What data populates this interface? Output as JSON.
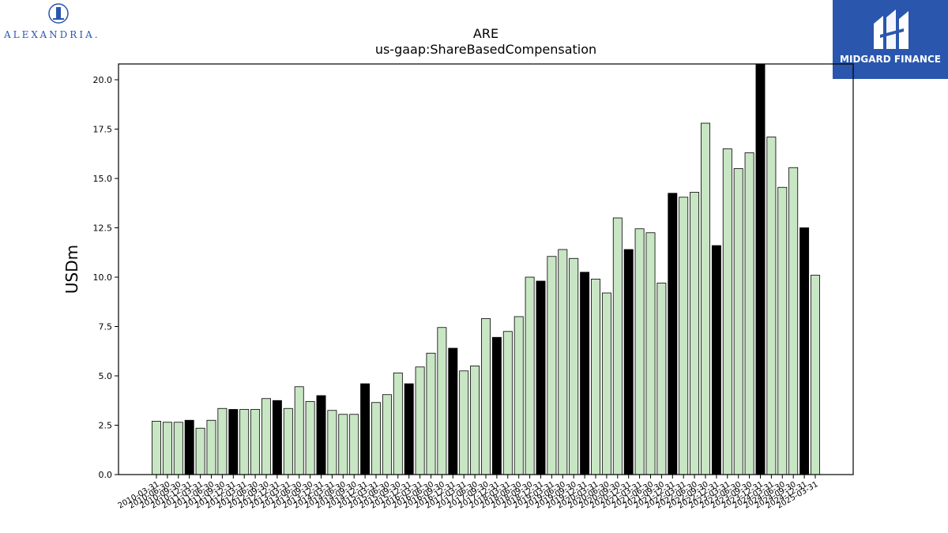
{
  "logos": {
    "left_text": "ALEXANDRIA.",
    "right_text": "MIDGARD FINANCE",
    "right_bg_color": "#2a57ad",
    "left_color": "#2a57ad"
  },
  "chart_data": {
    "type": "bar",
    "title": "ARE",
    "subtitle": "us-gaap:ShareBasedCompensation",
    "xlabel": "",
    "ylabel": "USDm",
    "ylim": [
      0,
      20.8
    ],
    "yticks": [
      "0.0",
      "2.5",
      "5.0",
      "7.5",
      "10.0",
      "12.5",
      "15.0",
      "17.5",
      "20.0"
    ],
    "grid": false,
    "colors": {
      "quarter": "#c8e6c4",
      "annual": "#000000",
      "edge": "#000000"
    },
    "categories": [
      "2010-03-31",
      "2010-06-30",
      "2010-09-30",
      "2010-12-31",
      "2011-03-31",
      "2011-06-30",
      "2011-09-30",
      "2011-12-31",
      "2012-03-31",
      "2012-06-30",
      "2012-09-30",
      "2012-12-31",
      "2013-03-31",
      "2013-06-30",
      "2013-09-30",
      "2013-12-31",
      "2014-03-31",
      "2014-06-30",
      "2014-09-30",
      "2014-12-31",
      "2015-03-31",
      "2015-06-30",
      "2015-09-30",
      "2015-12-31",
      "2016-03-31",
      "2016-06-30",
      "2016-09-30",
      "2016-12-31",
      "2017-03-31",
      "2017-06-30",
      "2017-09-30",
      "2017-12-31",
      "2018-03-31",
      "2018-06-30",
      "2018-09-30",
      "2018-12-31",
      "2019-03-31",
      "2019-06-30",
      "2019-09-30",
      "2019-12-31",
      "2020-03-31",
      "2020-06-30",
      "2020-09-30",
      "2020-12-31",
      "2021-03-31",
      "2021-06-30",
      "2021-09-30",
      "2021-12-31",
      "2022-03-31",
      "2022-06-30",
      "2022-09-30",
      "2022-12-31",
      "2023-03-31",
      "2023-06-30",
      "2023-09-30",
      "2023-12-31",
      "2024-03-31",
      "2024-06-30",
      "2024-09-30",
      "2024-12-31",
      "2025-03-31"
    ],
    "values": [
      2.7,
      2.65,
      2.65,
      2.75,
      2.35,
      2.75,
      3.35,
      3.3,
      3.3,
      3.3,
      3.85,
      3.75,
      3.35,
      4.45,
      3.7,
      4.0,
      3.25,
      3.05,
      3.05,
      4.6,
      3.65,
      4.05,
      5.15,
      4.6,
      5.45,
      6.15,
      7.45,
      6.4,
      5.25,
      5.5,
      7.9,
      6.95,
      7.25,
      8.0,
      10.0,
      9.8,
      11.05,
      11.4,
      10.95,
      10.25,
      9.9,
      9.2,
      13.0,
      11.4,
      12.45,
      12.25,
      9.7,
      14.25,
      14.05,
      14.3,
      17.8,
      11.6,
      16.5,
      15.5,
      16.3,
      20.85,
      17.1,
      14.55,
      15.55,
      12.5,
      10.1
    ],
    "annual": [
      false,
      false,
      false,
      true,
      false,
      false,
      false,
      true,
      false,
      false,
      false,
      true,
      false,
      false,
      false,
      true,
      false,
      false,
      false,
      true,
      false,
      false,
      false,
      true,
      false,
      false,
      false,
      true,
      false,
      false,
      false,
      true,
      false,
      false,
      false,
      true,
      false,
      false,
      false,
      true,
      false,
      false,
      false,
      true,
      false,
      false,
      false,
      true,
      false,
      false,
      false,
      true,
      false,
      false,
      false,
      true,
      false,
      false,
      false,
      true,
      false
    ]
  }
}
